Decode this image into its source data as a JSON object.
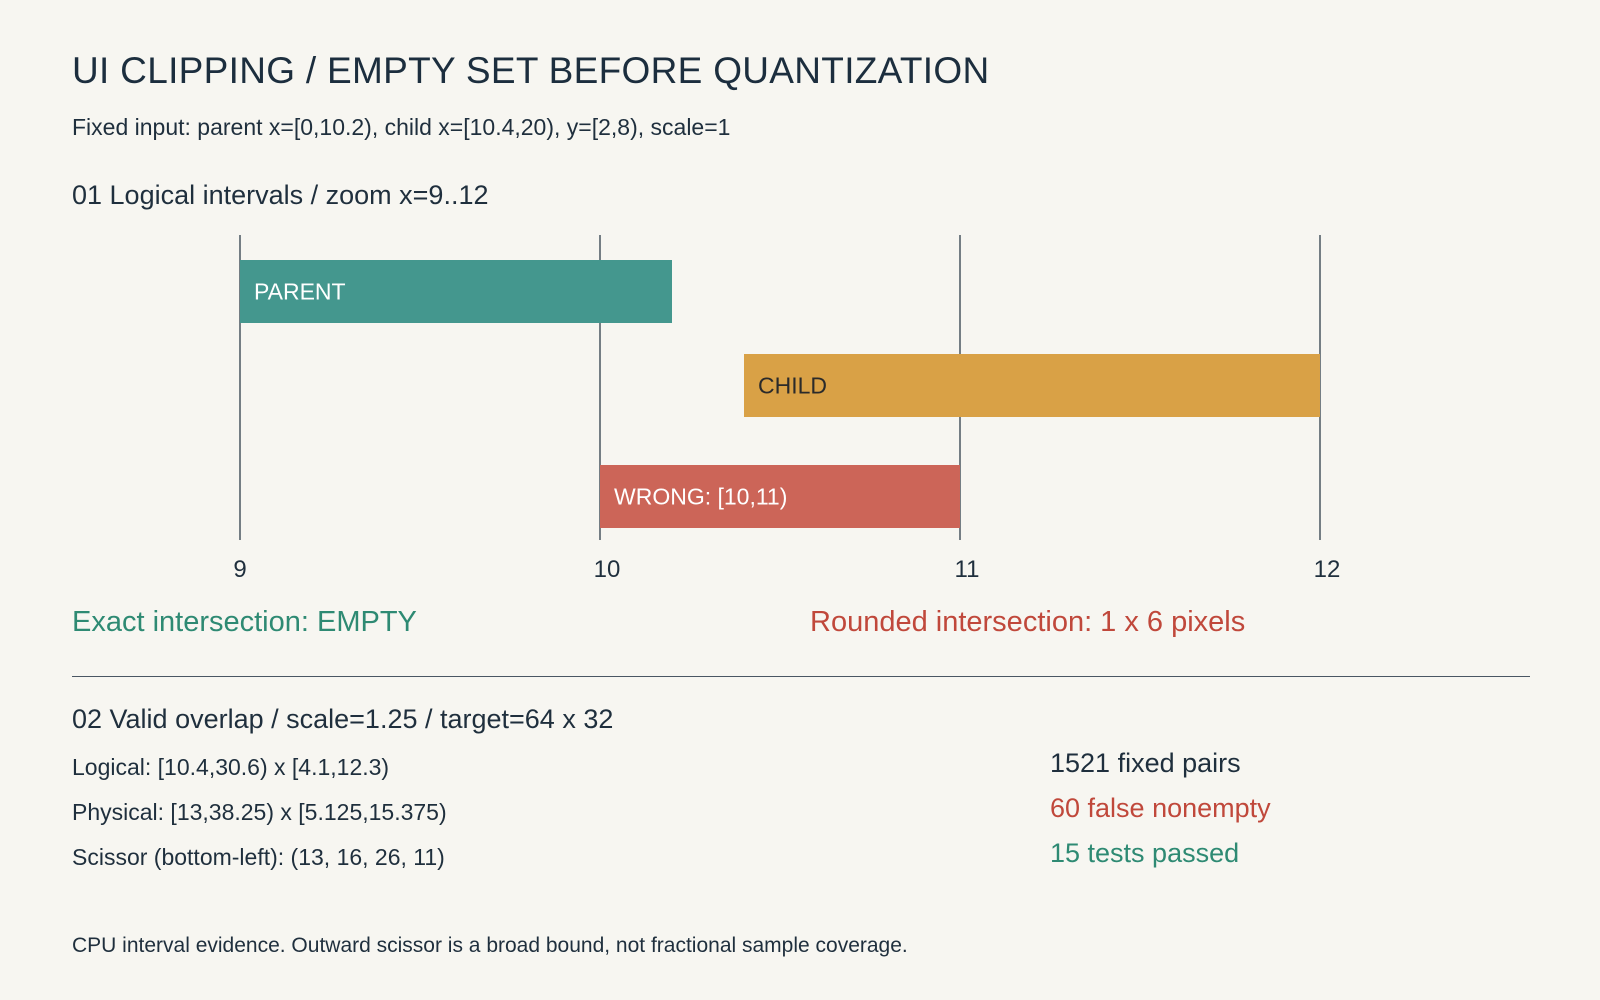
{
  "title": "UI CLIPPING / EMPTY SET BEFORE QUANTIZATION",
  "subtitle": "Fixed input: parent x=[0,10.2), child x=[10.4,20), y=[2,8), scale=1",
  "section1": {
    "heading": "01  Logical intervals / zoom x=9..12",
    "axis": {
      "min": 9,
      "max": 12,
      "ticks": [
        9,
        10,
        11,
        12
      ]
    },
    "bars": [
      {
        "id": "parent",
        "label": "PARENT",
        "start": 9,
        "end": 10.2,
        "lane": 0,
        "color": "#44978e",
        "text_color": "#ffffff"
      },
      {
        "id": "child",
        "label": "CHILD",
        "start": 10.4,
        "end": 12,
        "lane": 1,
        "color": "#d9a146",
        "text_color": "#2a2a2a"
      },
      {
        "id": "wrong",
        "label": "WRONG: [10,11)",
        "start": 10,
        "end": 11,
        "lane": 2,
        "color": "#cc6558",
        "text_color": "#ffffff"
      }
    ],
    "exact_result": "Exact intersection: EMPTY",
    "rounded_result": "Rounded intersection: 1 x 6 pixels"
  },
  "section2": {
    "heading": "02  Valid overlap / scale=1.25 / target=64 x 32",
    "lines": [
      "Logical: [10.4,30.6) x [4.1,12.3)",
      "Physical: [13,38.25) x [5.125,15.375)",
      "Scissor (bottom-left): (13, 16, 26, 11)"
    ],
    "stats": {
      "pairs": "1521 fixed pairs",
      "false_nonempty": "60 false nonempty",
      "passed": "15 tests passed"
    }
  },
  "footer": "CPU interval evidence. Outward scissor is a broad bound, not fractional sample coverage.",
  "colors": {
    "axis_line": "#1f2f3d",
    "exact": "#2e8a73",
    "rounded": "#c0483b"
  }
}
